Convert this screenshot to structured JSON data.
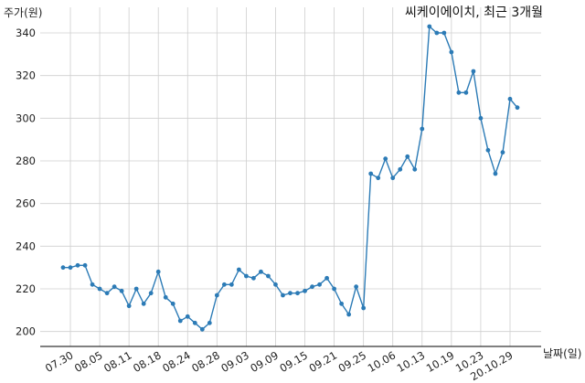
{
  "chart_data": {
    "type": "line",
    "title": "씨케이에이치, 최근 3개월",
    "xlabel": "날짜(일)",
    "ylabel": "주가(원)",
    "ylim": [
      193,
      352
    ],
    "yticks": [
      200,
      220,
      240,
      260,
      280,
      300,
      320,
      340
    ],
    "xticks": [
      "07.30",
      "08.05",
      "08.11",
      "08.18",
      "08.24",
      "08.28",
      "09.03",
      "09.09",
      "09.15",
      "09.21",
      "09.25",
      "10.06",
      "10.13",
      "10.19",
      "10.23",
      "20.10.29"
    ],
    "xtick_index": [
      1,
      5,
      9,
      13,
      17,
      21,
      25,
      29,
      33,
      37,
      41,
      45,
      49,
      53,
      57,
      61
    ],
    "grid": true,
    "line_color": "#2c7bb6",
    "values": [
      230,
      230,
      231,
      231,
      222,
      220,
      218,
      221,
      219,
      212,
      220,
      213,
      218,
      228,
      216,
      213,
      205,
      207,
      204,
      201,
      204,
      217,
      222,
      222,
      229,
      226,
      225,
      228,
      226,
      222,
      217,
      218,
      218,
      219,
      221,
      222,
      225,
      220,
      213,
      208,
      221,
      211,
      274,
      272,
      281,
      272,
      276,
      282,
      276,
      295,
      343,
      340,
      340,
      331,
      312,
      312,
      322,
      300,
      285,
      274,
      284,
      309,
      305
    ]
  }
}
